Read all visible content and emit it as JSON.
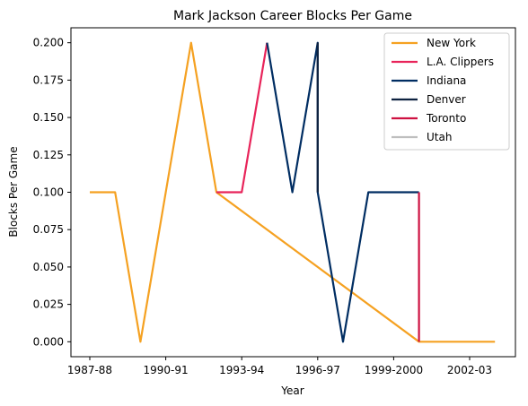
{
  "chart_data": {
    "type": "line",
    "title": "Mark Jackson  Career Blocks Per Game",
    "xlabel": "Year",
    "ylabel": "Blocks Per Game",
    "ylim": [
      -0.01,
      0.21
    ],
    "x_tick_labels": [
      "1987-88",
      "1990-91",
      "1993-94",
      "1996-97",
      "1999-2000",
      "2002-03"
    ],
    "y_tick_labels": [
      "0.000",
      "0.025",
      "0.050",
      "0.075",
      "0.100",
      "0.125",
      "0.150",
      "0.175",
      "0.200"
    ],
    "legend_placement": "top-right",
    "grid": false,
    "series": [
      {
        "name": "New York",
        "color": "#f5a121",
        "points": [
          [
            "1987-88",
            0.1
          ],
          [
            "1988-89",
            0.1
          ],
          [
            "1989-90",
            0.0
          ],
          [
            "1990-91",
            0.1
          ],
          [
            "1991-92",
            0.2
          ],
          [
            "1992-93",
            0.1
          ],
          [
            "2000-01",
            0.0
          ],
          [
            "2001-02",
            0.0
          ],
          [
            "2002-03",
            0.0
          ],
          [
            "2003-04",
            0.0
          ]
        ]
      },
      {
        "name": "L.A. Clippers",
        "color": "#e8245a",
        "points": [
          [
            "1992-93",
            0.1
          ],
          [
            "1993-94",
            0.1
          ],
          [
            "1994-95",
            0.2
          ]
        ]
      },
      {
        "name": "Indiana",
        "color": "#002d62",
        "points": [
          [
            "1994-95",
            0.2
          ],
          [
            "1995-96",
            0.1
          ],
          [
            "1996-97",
            0.2
          ],
          [
            "1996-97",
            0.1
          ],
          [
            "1997-98",
            0.0
          ],
          [
            "1998-99",
            0.1
          ],
          [
            "1999-2000",
            0.1
          ],
          [
            "2000-01",
            0.1
          ]
        ]
      },
      {
        "name": "Denver",
        "color": "#0e2240",
        "points": [
          [
            "1996-97",
            0.2
          ],
          [
            "1996-97",
            0.1
          ]
        ]
      },
      {
        "name": "Toronto",
        "color": "#ce1141",
        "points": [
          [
            "2000-01",
            0.1
          ],
          [
            "2000-01",
            0.0
          ]
        ]
      },
      {
        "name": "Utah",
        "color": "#bebebe",
        "points": []
      }
    ]
  }
}
